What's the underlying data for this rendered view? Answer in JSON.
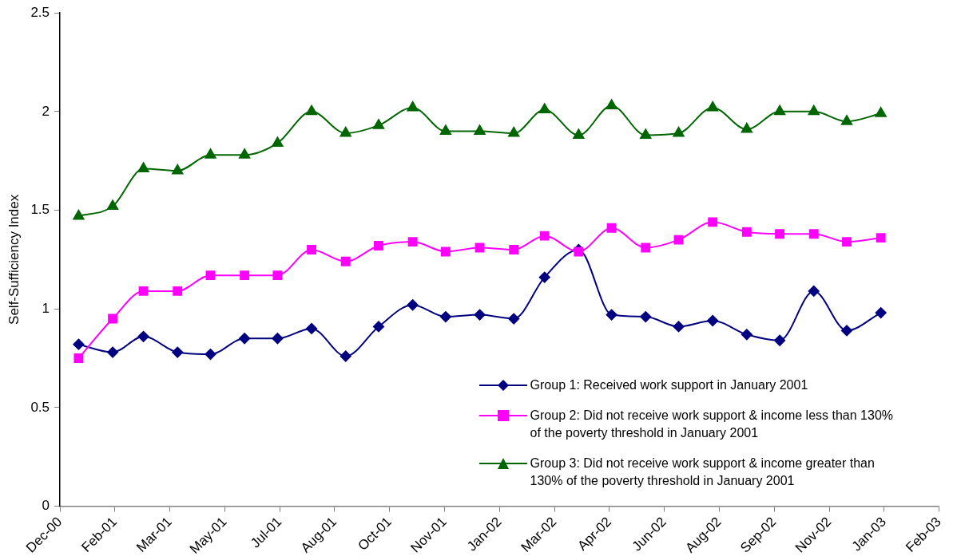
{
  "chart_data": {
    "type": "line",
    "ylabel": "Self-Sufficiency Index",
    "x": [
      "2000-12-31",
      "2001-01-31",
      "2001-02-28",
      "2001-03-31",
      "2001-04-30",
      "2001-05-31",
      "2001-06-30",
      "2001-07-31",
      "2001-08-31",
      "2001-09-30",
      "2001-10-31",
      "2001-11-30",
      "2001-12-31",
      "2002-01-31",
      "2002-02-28",
      "2002-03-31",
      "2002-04-30",
      "2002-05-31",
      "2002-06-30",
      "2002-07-31",
      "2002-08-31",
      "2002-09-30",
      "2002-10-31",
      "2002-11-30",
      "2002-12-31"
    ],
    "series": [
      {
        "name": "Group 1: Received work support in January 2001",
        "color": "#000080",
        "marker": "diamond",
        "values": [
          0.82,
          0.78,
          0.86,
          0.78,
          0.77,
          0.85,
          0.85,
          0.9,
          0.76,
          0.91,
          1.02,
          0.96,
          0.97,
          0.95,
          1.16,
          1.3,
          0.97,
          0.96,
          0.91,
          0.94,
          0.87,
          0.84,
          1.09,
          0.89,
          0.98
        ]
      },
      {
        "name": "Group 2: Did not receive work support & income less than 130% of the poverty threshold in January 2001",
        "color": "#ff00ff",
        "marker": "square",
        "values": [
          0.75,
          0.95,
          1.09,
          1.09,
          1.17,
          1.17,
          1.17,
          1.3,
          1.24,
          1.32,
          1.34,
          1.29,
          1.31,
          1.3,
          1.37,
          1.29,
          1.41,
          1.31,
          1.35,
          1.44,
          1.39,
          1.38,
          1.38,
          1.34,
          1.36
        ]
      },
      {
        "name": "Group 3: Did not receive work support & income greater than 130% of the poverty threshold in January 2001",
        "color": "#006600",
        "marker": "triangle",
        "values": [
          1.47,
          1.52,
          1.71,
          1.7,
          1.78,
          1.78,
          1.84,
          2.0,
          1.89,
          1.93,
          2.02,
          1.9,
          1.9,
          1.89,
          2.01,
          1.88,
          2.03,
          1.88,
          1.89,
          2.02,
          1.91,
          2.0,
          2.0,
          1.95,
          1.99
        ]
      }
    ],
    "xlim": [
      "2000-12-14",
      "2003-02-22"
    ],
    "xticks": [
      {
        "value": "2000-12-14",
        "label": "Dec-00"
      },
      {
        "value": "2001-02-02",
        "label": "Feb-01"
      },
      {
        "value": "2001-03-24",
        "label": "Mar-01"
      },
      {
        "value": "2001-05-13",
        "label": "May-01"
      },
      {
        "value": "2001-07-02",
        "label": "Jul-01"
      },
      {
        "value": "2001-08-21",
        "label": "Aug-01"
      },
      {
        "value": "2001-10-10",
        "label": "Oct-01"
      },
      {
        "value": "2001-11-29",
        "label": "Nov-01"
      },
      {
        "value": "2002-01-18",
        "label": "Jan-02"
      },
      {
        "value": "2002-03-09",
        "label": "Mar-02"
      },
      {
        "value": "2002-04-28",
        "label": "Apr-02"
      },
      {
        "value": "2002-06-17",
        "label": "Jun-02"
      },
      {
        "value": "2002-08-06",
        "label": "Aug-02"
      },
      {
        "value": "2002-09-25",
        "label": "Sep-02"
      },
      {
        "value": "2002-11-14",
        "label": "Nov-02"
      },
      {
        "value": "2003-01-03",
        "label": "Jan-03"
      },
      {
        "value": "2003-02-22",
        "label": "Feb-03"
      }
    ],
    "ylim": [
      0,
      2.5
    ],
    "yticks": [
      0,
      0.5,
      1,
      1.5,
      2,
      2.5
    ],
    "grid": false,
    "legend": "bottom right",
    "line_style": "solid"
  }
}
